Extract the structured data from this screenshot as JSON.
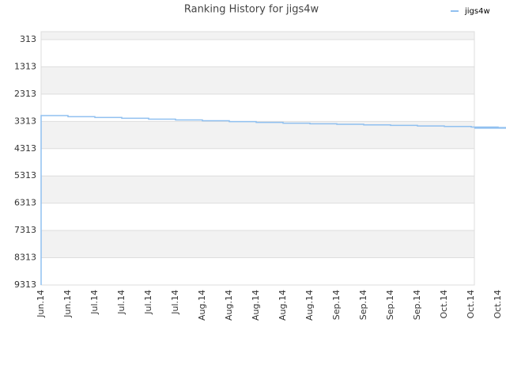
{
  "chart_data": {
    "type": "step-line",
    "title": "Ranking History for jigs4w",
    "categories": [
      "Jun.14",
      "Jun.14",
      "Jul.14",
      "Jul.14",
      "Jul.14",
      "Jul.14",
      "Aug.14",
      "Aug.14",
      "Aug.14",
      "Aug.14",
      "Aug.14",
      "Sep.14",
      "Sep.14",
      "Sep.14",
      "Sep.14",
      "Oct.14",
      "Oct.14",
      "Oct.14",
      "Oct.14"
    ],
    "series": [
      {
        "name": "jigs4w",
        "color": "#90c0f0",
        "values": [
          3100,
          3140,
          3170,
          3200,
          3230,
          3260,
          3290,
          3320,
          3350,
          3380,
          3400,
          3420,
          3440,
          3460,
          3480,
          3500,
          3520,
          3540,
          3560
        ]
      }
    ],
    "ylim": [
      9313,
      23
    ],
    "yticks": [
      313,
      1313,
      2313,
      3313,
      4313,
      5313,
      6313,
      7313,
      8313,
      9313
    ],
    "grid": true,
    "legend": "top-right"
  }
}
